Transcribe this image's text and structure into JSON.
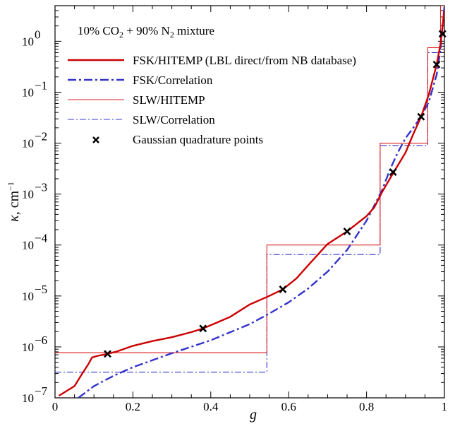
{
  "chart_data": {
    "type": "line",
    "title": "10% CO₂ + 90% N₂ mixture",
    "title_parts": {
      "pre": "10% CO",
      "sub1": "2",
      "mid": " + 90% N",
      "sub2": "2",
      "post": " mixture"
    },
    "xlabel": "g",
    "ylabel": "κ, cm⁻¹",
    "ylabel_parts": {
      "sym": "κ",
      "unit": ", cm",
      "sup": "−1"
    },
    "xlim": [
      0,
      1
    ],
    "ylim": [
      1e-07,
      5
    ],
    "yscale": "log",
    "grid": false,
    "legend_position": "top-right",
    "x_ticks": [
      {
        "value": 0,
        "label": "0"
      },
      {
        "value": 0.2,
        "label": "0.2"
      },
      {
        "value": 0.4,
        "label": "0.4"
      },
      {
        "value": 0.6,
        "label": "0.6"
      },
      {
        "value": 0.8,
        "label": "0.8"
      },
      {
        "value": 1,
        "label": "1"
      }
    ],
    "y_ticks": [
      {
        "value": 1e-07,
        "base": "10",
        "exp": "−7"
      },
      {
        "value": 1e-06,
        "base": "10",
        "exp": "−6"
      },
      {
        "value": 1e-05,
        "base": "10",
        "exp": "−5"
      },
      {
        "value": 0.0001,
        "base": "10",
        "exp": "−4"
      },
      {
        "value": 0.001,
        "base": "10",
        "exp": "−3"
      },
      {
        "value": 0.01,
        "base": "10",
        "exp": "−2"
      },
      {
        "value": 0.1,
        "base": "10",
        "exp": "−1"
      },
      {
        "value": 1,
        "base": "10",
        "exp": "0"
      }
    ],
    "series": [
      {
        "name": "FSK/HITEMP (LBL direct/from NB database)",
        "style": "solid-thick",
        "color": "#cc0000",
        "x": [
          0.01,
          0.05,
          0.07,
          0.085,
          0.095,
          0.11,
          0.135,
          0.16,
          0.2,
          0.25,
          0.3,
          0.35,
          0.38,
          0.42,
          0.45,
          0.5,
          0.55,
          0.585,
          0.62,
          0.65,
          0.7,
          0.75,
          0.8,
          0.82,
          0.84,
          0.86,
          0.87,
          0.9,
          0.92,
          0.94,
          0.96,
          0.98,
          0.99,
          1.0
        ],
        "y": [
          1.1e-07,
          1.7e-07,
          3e-07,
          4.5e-07,
          6.2e-07,
          6.7e-07,
          7.3e-07,
          8.2e-07,
          1.05e-06,
          1.3e-06,
          1.55e-06,
          1.95e-06,
          2.3e-06,
          3.1e-06,
          3.9e-06,
          6.8e-06,
          1e-05,
          1.35e-05,
          2.2e-05,
          4e-05,
          0.000105,
          0.000185,
          0.00037,
          0.00055,
          0.0011,
          0.002,
          0.0027,
          0.0065,
          0.015,
          0.033,
          0.09,
          0.35,
          0.9,
          4.0
        ]
      },
      {
        "name": "FSK/Correlation",
        "style": "dashdot-thick",
        "color": "#3333cc",
        "x": [
          0.06,
          0.1,
          0.15,
          0.2,
          0.3,
          0.4,
          0.5,
          0.55,
          0.6,
          0.65,
          0.7,
          0.75,
          0.8,
          0.84,
          0.86,
          0.88,
          0.9,
          0.92,
          0.94,
          0.96,
          0.98,
          0.99,
          1.0
        ],
        "y": [
          1e-07,
          1.7e-07,
          2.7e-07,
          4e-07,
          7.5e-07,
          1.35e-06,
          2.8e-06,
          4.5e-06,
          7.5e-06,
          1.4e-05,
          3e-05,
          8e-05,
          0.0003,
          0.0012,
          0.003,
          0.0065,
          0.0125,
          0.02,
          0.033,
          0.065,
          0.22,
          0.7,
          5.0
        ]
      },
      {
        "name": "SLW/HITEMP",
        "style": "solid-thin",
        "color": "#dd2222",
        "x": [
          0,
          0.544,
          0.544,
          0.835,
          0.835,
          0.957,
          0.957,
          0.99,
          0.99,
          1.0
        ],
        "y": [
          7.7e-07,
          7.7e-07,
          0.0001,
          0.0001,
          0.01,
          0.01,
          0.75,
          0.75,
          5.0,
          5.0
        ]
      },
      {
        "name": "SLW/Correlation",
        "style": "dashdot-thin",
        "color": "#3333cc",
        "x": [
          0,
          0.544,
          0.544,
          0.835,
          0.835,
          0.957,
          0.957,
          0.99,
          0.99,
          1.0
        ],
        "y": [
          3.2e-07,
          3.2e-07,
          6.5e-05,
          6.5e-05,
          0.009,
          0.009,
          0.6,
          0.6,
          5.0,
          5.0
        ]
      },
      {
        "name": "Gaussian quadrature points",
        "style": "markers-x",
        "color": "#000000",
        "x": [
          0.135,
          0.38,
          0.585,
          0.75,
          0.868,
          0.94,
          0.98,
          0.995
        ],
        "y": [
          7.3e-07,
          2.3e-06,
          1.35e-05,
          0.000185,
          0.0027,
          0.033,
          0.35,
          1.4
        ]
      }
    ]
  }
}
